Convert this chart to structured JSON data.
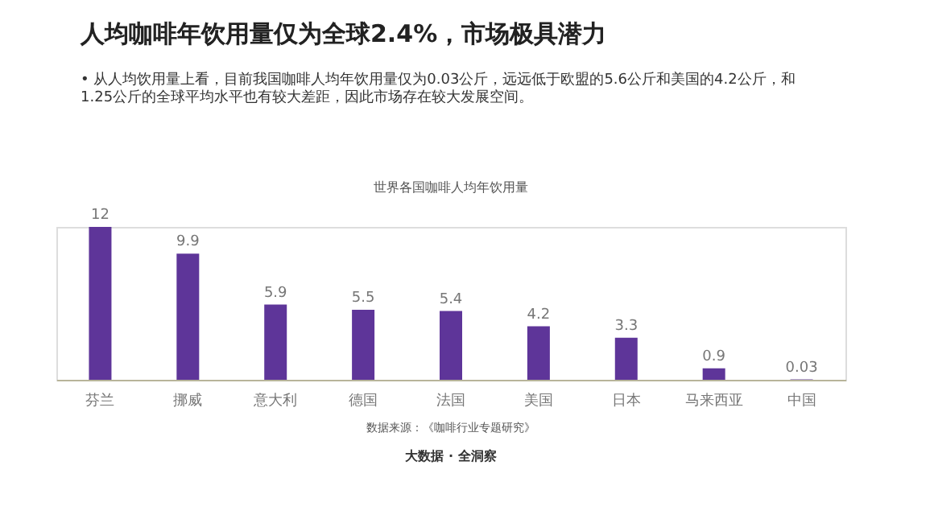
{
  "chart_data": {
    "type": "bar",
    "title": "人均咖啡年饮用量仅为全球2.4%，市场极具潜力",
    "subtitle": [
      "•  从人均饮用量上看，目前我国咖啡人均年饮用量仅为0.03公斤，远远低于欧盟的5.6公斤和美国的4.2公斤，和",
      "    1.25公斤的全球平均水平也有较大差距，因此市场存在较大发展空间。"
    ],
    "categories": [
      "芬兰",
      "挪威",
      "意大利",
      "德国",
      "法国",
      "美国",
      "日本",
      "马来西亚",
      "中国"
    ],
    "values": [
      12,
      9.9,
      5.9,
      5.5,
      5.4,
      4.2,
      3.3,
      0.9,
      0.03
    ],
    "color": "#5e3599",
    "data_labels": true,
    "grid": false,
    "tick_labels": "x",
    "annotations": [
      "世界各国咖啡人均年饮用量",
      "数据来源：《咖啡行业专题研究》",
      "大数据 · 全洞察"
    ]
  }
}
